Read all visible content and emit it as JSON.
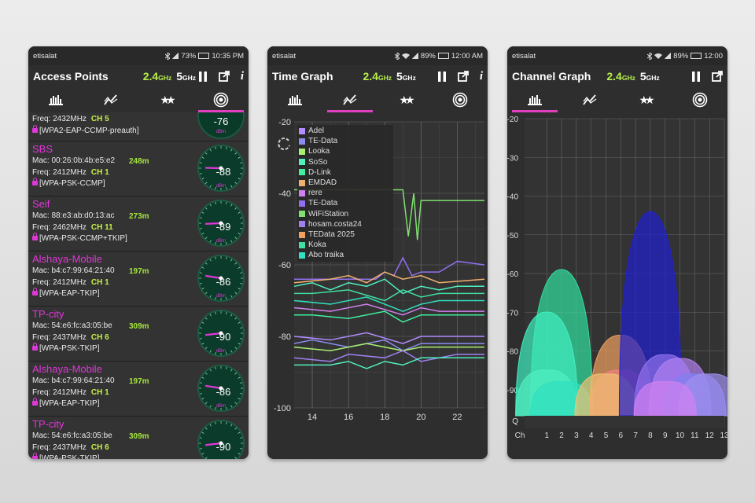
{
  "left": {
    "status": {
      "carrier": "etisalat",
      "battery": "73%",
      "time": "10:35 PM"
    },
    "title": "Access Points",
    "band24": "2.4",
    "band24_unit": "GHz",
    "band5": "5",
    "band5_unit": "GHz",
    "partial": {
      "freq": "Freq: 2432MHz",
      "channel": "CH 5",
      "security": "[WPA2-EAP-CCMP-preauth]",
      "signal": "-76",
      "unit": "dBm"
    },
    "aps": [
      {
        "ssid": "SBS",
        "mac": "Mac: 00:26:0b:4b:e5:e2",
        "distance": "248m",
        "freq": "Freq: 2412MHz",
        "channel": "CH 1",
        "security": "[WPA-PSK-CCMP]",
        "signal": "-88",
        "unit": "dBm"
      },
      {
        "ssid": "Seif",
        "mac": "Mac: 88:e3:ab:d0:13:ac",
        "distance": "273m",
        "freq": "Freq: 2462MHz",
        "channel": "CH 11",
        "security": "[WPA-PSK-CCMP+TKIP]",
        "signal": "-89",
        "unit": "dBm"
      },
      {
        "ssid": "Alshaya-Mobile",
        "mac": "Mac: b4:c7:99:64:21:40",
        "distance": "197m",
        "freq": "Freq: 2412MHz",
        "channel": "CH 1",
        "security": "[WPA-EAP-TKIP]",
        "signal": "-86",
        "unit": "dBm"
      },
      {
        "ssid": "TP-city",
        "mac": "Mac: 54:e6:fc:a3:05:be",
        "distance": "309m",
        "freq": "Freq: 2437MHz",
        "channel": "CH 6",
        "security": "[WPA-PSK-TKIP]",
        "signal": "-90",
        "unit": "dBm"
      },
      {
        "ssid": "Alshaya-Mobile",
        "mac": "Mac: b4:c7:99:64:21:40",
        "distance": "197m",
        "freq": "Freq: 2412MHz",
        "channel": "CH 1",
        "security": "[WPA-EAP-TKIP]",
        "signal": "-86",
        "unit": "dBm"
      },
      {
        "ssid": "TP-city",
        "mac": "Mac: 54:e6:fc:a3:05:be",
        "distance": "309m",
        "freq": "Freq: 2437MHz",
        "channel": "CH 6",
        "security": "[WPA-PSK-TKIP]",
        "signal": "-90",
        "unit": "dBm"
      }
    ]
  },
  "middle": {
    "status": {
      "carrier": "etisalat",
      "battery": "89%",
      "time": "12:00 AM"
    },
    "title": "Time Graph",
    "band24": "2.4",
    "band24_unit": "GHz",
    "band5": "5",
    "band5_unit": "GHz",
    "chart_data": {
      "type": "line",
      "ylim": [
        -100,
        -20
      ],
      "yticks": [
        "-20",
        "-40",
        "-60",
        "-80",
        "-100"
      ],
      "xticks": [
        "14",
        "16",
        "18",
        "20",
        "22"
      ],
      "xlim": [
        13,
        23.5
      ],
      "legend": [
        {
          "name": "Adel",
          "color": "#b38cff"
        },
        {
          "name": "TE-Data",
          "color": "#8a8cf0"
        },
        {
          "name": "Looka",
          "color": "#a8f070"
        },
        {
          "name": "SoSo",
          "color": "#50f0c0"
        },
        {
          "name": "D-Link",
          "color": "#40f0a0"
        },
        {
          "name": "EMDAD",
          "color": "#f0b070"
        },
        {
          "name": "rere",
          "color": "#d080f0"
        },
        {
          "name": "TE-Data",
          "color": "#9070f0"
        },
        {
          "name": "WiFiStation",
          "color": "#80e070"
        },
        {
          "name": "hosam.costa24",
          "color": "#a080f0"
        },
        {
          "name": "TEData 2025",
          "color": "#f0a060"
        },
        {
          "name": "Koka",
          "color": "#40e0a0"
        },
        {
          "name": "Abo traika",
          "color": "#30e0c0"
        }
      ],
      "series": [
        {
          "color": "#80e070",
          "x": [
            13,
            19,
            19.3,
            19.6,
            19.8,
            20,
            23.5
          ],
          "y": [
            -39,
            -39,
            -52,
            -40,
            -53,
            -42,
            -42
          ]
        },
        {
          "color": "#9070f0",
          "x": [
            13,
            17.5,
            18,
            18.5,
            19,
            19.5,
            20,
            21,
            22,
            23.5
          ],
          "y": [
            -64,
            -64,
            -62,
            -63,
            -58,
            -63,
            -62,
            -62,
            -59,
            -60
          ]
        },
        {
          "color": "#f0b070",
          "x": [
            13,
            15,
            16,
            17,
            18,
            19,
            20,
            21,
            23.5
          ],
          "y": [
            -65,
            -64,
            -63,
            -65,
            -62,
            -64,
            -63,
            -65,
            -64
          ]
        },
        {
          "color": "#50f0c0",
          "x": [
            13,
            14,
            15,
            16,
            17,
            18,
            19,
            20,
            21,
            22,
            23.5
          ],
          "y": [
            -66,
            -65,
            -67,
            -65,
            -66,
            -64,
            -68,
            -66,
            -67,
            -66,
            -66
          ]
        },
        {
          "color": "#40e0a0",
          "x": [
            13,
            14,
            16,
            18,
            19,
            20,
            21,
            23.5
          ],
          "y": [
            -68,
            -68,
            -67,
            -70,
            -67,
            -69,
            -68,
            -68
          ]
        },
        {
          "color": "#30e0c0",
          "x": [
            13,
            15,
            17,
            18.5,
            19,
            20,
            21,
            23.5
          ],
          "y": [
            -70,
            -71,
            -69,
            -72,
            -73,
            -71,
            -70,
            -70
          ]
        },
        {
          "color": "#d080f0",
          "x": [
            13,
            15,
            17,
            19,
            20,
            21,
            23.5
          ],
          "y": [
            -72,
            -73,
            -71,
            -74,
            -72,
            -73,
            -73
          ]
        },
        {
          "color": "#40f0a0",
          "x": [
            13,
            14,
            16,
            18,
            19,
            20,
            23.5
          ],
          "y": [
            -74,
            -74,
            -75,
            -73,
            -76,
            -74,
            -74
          ]
        },
        {
          "color": "#b38cff",
          "x": [
            13,
            15,
            17,
            19,
            20,
            21,
            23.5
          ],
          "y": [
            -80,
            -81,
            -79,
            -82,
            -80,
            -80,
            -80
          ]
        },
        {
          "color": "#8a8cf0",
          "x": [
            13,
            14,
            16,
            18,
            19,
            20,
            22,
            23.5
          ],
          "y": [
            -82,
            -81,
            -83,
            -81,
            -84,
            -82,
            -82,
            -82
          ]
        },
        {
          "color": "#a8f070",
          "x": [
            13,
            15,
            17,
            19,
            20,
            21,
            23.5
          ],
          "y": [
            -83,
            -84,
            -82,
            -84,
            -83,
            -83,
            -83
          ]
        },
        {
          "color": "#a080f0",
          "x": [
            13,
            15,
            16,
            18,
            19,
            20,
            21,
            22,
            23.5
          ],
          "y": [
            -86,
            -87,
            -85,
            -86,
            -84,
            -87,
            -86,
            -85,
            -85
          ]
        },
        {
          "color": "#50f0c0",
          "x": [
            13,
            15,
            16,
            17,
            18,
            19,
            20,
            23.5
          ],
          "y": [
            -88,
            -88,
            -87,
            -89,
            -87,
            -88,
            -86,
            -86
          ]
        }
      ]
    }
  },
  "right": {
    "status": {
      "carrier": "etisalat",
      "battery": "89%",
      "time": "12:00"
    },
    "title": "Channel Graph",
    "band24": "2.4",
    "band24_unit": "GHz",
    "band5": "5",
    "band5_unit": "GHz",
    "chart_data": {
      "type": "area",
      "ylim": [
        -100,
        -20
      ],
      "yticks": [
        "-20",
        "-30",
        "-40",
        "-50",
        "-60",
        "-70",
        "-80",
        "-90",
        "Q"
      ],
      "xticks": [
        "Ch",
        "1",
        "2",
        "3",
        "4",
        "5",
        "6",
        "7",
        "8",
        "9",
        "10",
        "11",
        "12",
        "13"
      ],
      "xlim": [
        -0.5,
        13
      ],
      "series": [
        {
          "center": 2,
          "level": -59,
          "color": "#30e0a0"
        },
        {
          "center": 1,
          "level": -70,
          "color": "#40f0c0"
        },
        {
          "center": 1,
          "level": -85,
          "color": "#50f0c0"
        },
        {
          "center": 2,
          "level": -88,
          "color": "#30e0c0"
        },
        {
          "center": 6,
          "level": -76,
          "color": "#f0a060"
        },
        {
          "center": 6,
          "level": -85,
          "color": "#f08080"
        },
        {
          "center": 5,
          "level": -86,
          "color": "#f0c070"
        },
        {
          "center": 8,
          "level": -44,
          "color": "#2020d0"
        },
        {
          "center": 9,
          "level": -81,
          "color": "#9070f0"
        },
        {
          "center": 10,
          "level": -82,
          "color": "#b080f0"
        },
        {
          "center": 11,
          "level": -86,
          "color": "#8080f0"
        },
        {
          "center": 12,
          "level": -86,
          "color": "#a090f0"
        },
        {
          "center": 9,
          "level": -88,
          "color": "#d080f0"
        }
      ]
    }
  }
}
